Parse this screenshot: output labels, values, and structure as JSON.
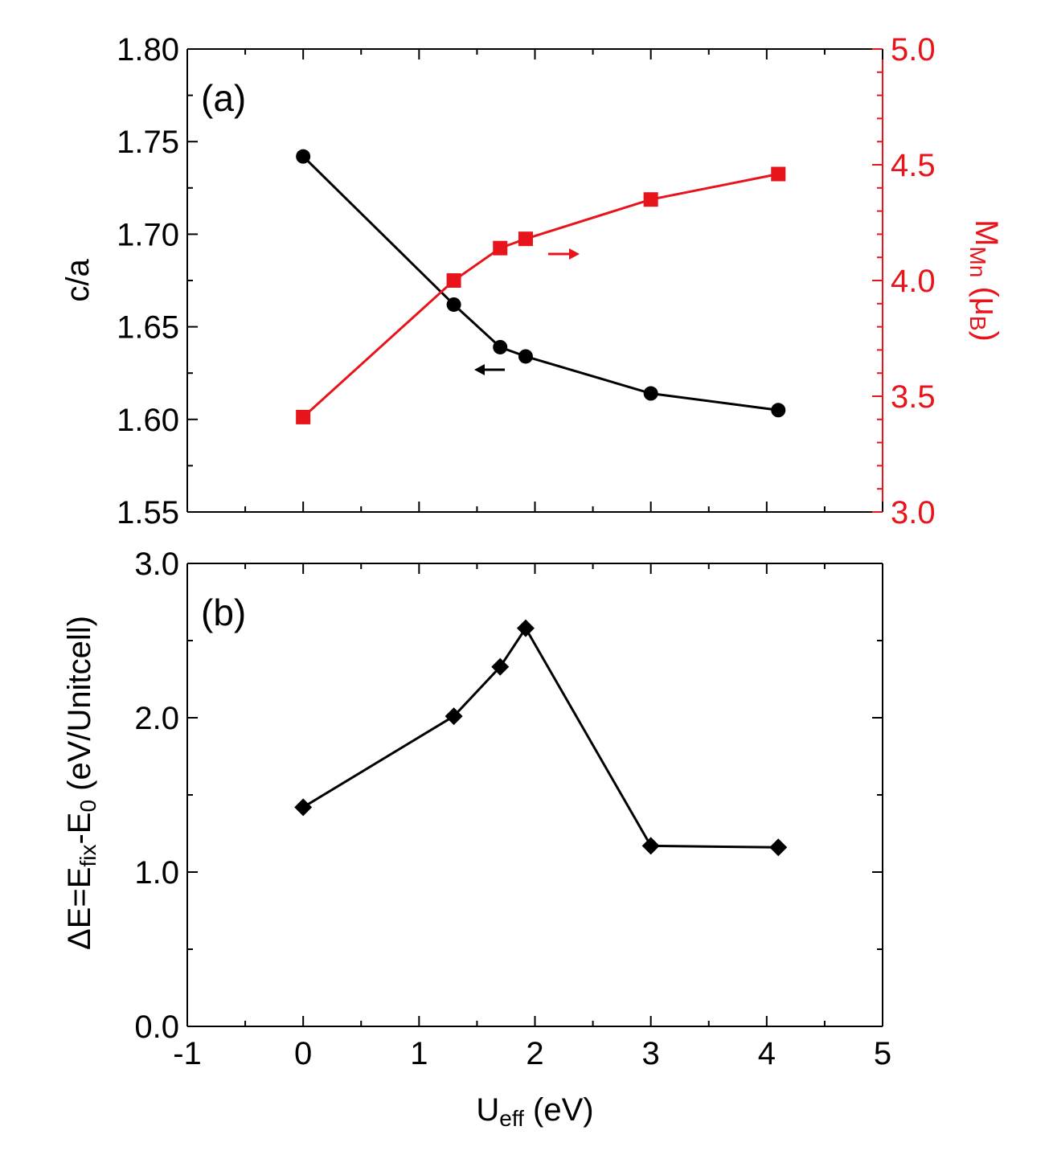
{
  "chart_data": [
    {
      "type": "line",
      "panel_label": "(a)",
      "x": [
        0,
        1.3,
        1.7,
        1.92,
        3.0,
        4.1
      ],
      "xlim": [
        -1,
        5
      ],
      "x_ticks": [
        "-1",
        "0",
        "1",
        "2",
        "3",
        "4",
        "5"
      ],
      "ylabel": "c/a",
      "ylim": [
        1.55,
        1.8
      ],
      "y_ticks": [
        "1.55",
        "1.60",
        "1.65",
        "1.70",
        "1.75",
        "1.80"
      ],
      "y2label_main": "M",
      "y2label_sub": "Mn",
      "y2label_tail": " (μ",
      "y2label_sub2": "B",
      "y2label_end": ")",
      "y2lim": [
        3.0,
        5.0
      ],
      "y2_ticks": [
        "3.0",
        "3.5",
        "4.0",
        "4.5",
        "5.0"
      ],
      "series": [
        {
          "axis": "left",
          "marker": "circle",
          "color": "#000000",
          "values": [
            1.742,
            1.662,
            1.639,
            1.634,
            1.614,
            1.605
          ]
        },
        {
          "axis": "right",
          "marker": "square",
          "color": "#e8141b",
          "values": [
            3.41,
            4.0,
            4.14,
            4.18,
            4.35,
            4.46
          ]
        }
      ],
      "arrows": [
        {
          "direction": "left",
          "color": "#000000"
        },
        {
          "direction": "right",
          "color": "#e8141b"
        }
      ],
      "grid": false
    },
    {
      "type": "line",
      "panel_label": "(b)",
      "x": [
        0,
        1.3,
        1.7,
        1.92,
        3.0,
        4.1
      ],
      "xlim": [
        -1,
        5
      ],
      "x_ticks": [
        "-1",
        "0",
        "1",
        "2",
        "3",
        "4",
        "5"
      ],
      "xlabel_main": "U",
      "xlabel_sub": "eff",
      "xlabel_tail": " (eV)",
      "ylabel_parts": [
        "ΔE=E",
        "fix",
        "-E",
        "0",
        " (eV/Unitcell)"
      ],
      "ylim": [
        0.0,
        3.0
      ],
      "y_ticks": [
        "0.0",
        "1.0",
        "2.0",
        "3.0"
      ],
      "series": [
        {
          "axis": "left",
          "marker": "diamond",
          "color": "#000000",
          "values": [
            1.42,
            2.01,
            2.33,
            2.58,
            1.17,
            1.16
          ]
        }
      ],
      "grid": false
    }
  ]
}
